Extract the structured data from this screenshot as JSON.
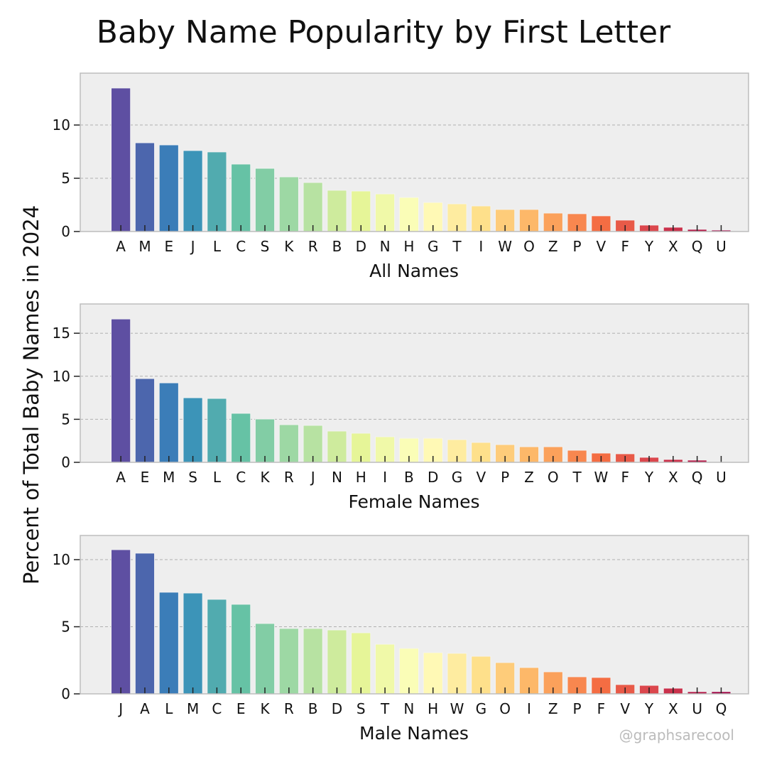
{
  "title": "Baby Name Popularity by First Letter",
  "ylabel": "Percent of Total Baby Names in 2024",
  "watermark": "@graphsarecool",
  "palette": [
    "#5e4fa2",
    "#3288bd",
    "#66c2a5",
    "#abdda4",
    "#e6f598",
    "#ffffbf",
    "#fee08b",
    "#fdae61",
    "#f46d43",
    "#d53e4f",
    "#9e0142"
  ],
  "chart_data": [
    {
      "type": "bar",
      "xlabel": "All Names",
      "ylim": [
        0,
        14.87
      ],
      "yticks": [
        0,
        5,
        10
      ],
      "grid": true,
      "categories": [
        "A",
        "M",
        "E",
        "J",
        "L",
        "C",
        "S",
        "K",
        "R",
        "B",
        "D",
        "N",
        "H",
        "G",
        "T",
        "I",
        "W",
        "O",
        "Z",
        "P",
        "V",
        "F",
        "Y",
        "X",
        "Q",
        "U"
      ],
      "values": [
        13.47,
        8.33,
        8.13,
        7.6,
        7.47,
        6.33,
        5.93,
        5.13,
        4.6,
        3.87,
        3.8,
        3.53,
        3.2,
        2.73,
        2.6,
        2.4,
        2.07,
        2.07,
        1.73,
        1.67,
        1.47,
        1.07,
        0.6,
        0.4,
        0.2,
        0.13
      ]
    },
    {
      "type": "bar",
      "xlabel": "Female Names",
      "ylim": [
        0,
        18.4
      ],
      "yticks": [
        0,
        5,
        10,
        15
      ],
      "grid": true,
      "categories": [
        "A",
        "E",
        "M",
        "S",
        "L",
        "C",
        "K",
        "R",
        "J",
        "N",
        "H",
        "I",
        "B",
        "D",
        "G",
        "V",
        "P",
        "Z",
        "O",
        "T",
        "W",
        "F",
        "Y",
        "X",
        "Q",
        "U"
      ],
      "values": [
        16.65,
        9.73,
        9.23,
        7.5,
        7.42,
        5.69,
        5.03,
        4.37,
        4.29,
        3.63,
        3.38,
        2.97,
        2.8,
        2.8,
        2.64,
        2.31,
        2.06,
        1.81,
        1.81,
        1.4,
        1.07,
        0.99,
        0.58,
        0.33,
        0.25,
        0.05
      ]
    },
    {
      "type": "bar",
      "xlabel": "Male Names",
      "ylim": [
        0,
        11.8
      ],
      "yticks": [
        0,
        5,
        10
      ],
      "grid": true,
      "categories": [
        "J",
        "A",
        "L",
        "M",
        "C",
        "E",
        "K",
        "R",
        "B",
        "D",
        "S",
        "T",
        "N",
        "H",
        "W",
        "G",
        "O",
        "I",
        "Z",
        "P",
        "F",
        "V",
        "Y",
        "X",
        "U",
        "Q"
      ],
      "values": [
        10.74,
        10.48,
        7.57,
        7.51,
        7.04,
        6.67,
        5.24,
        4.87,
        4.87,
        4.76,
        4.55,
        3.7,
        3.39,
        3.07,
        3.02,
        2.8,
        2.33,
        1.96,
        1.64,
        1.27,
        1.22,
        0.69,
        0.63,
        0.42,
        0.16,
        0.16
      ]
    }
  ]
}
